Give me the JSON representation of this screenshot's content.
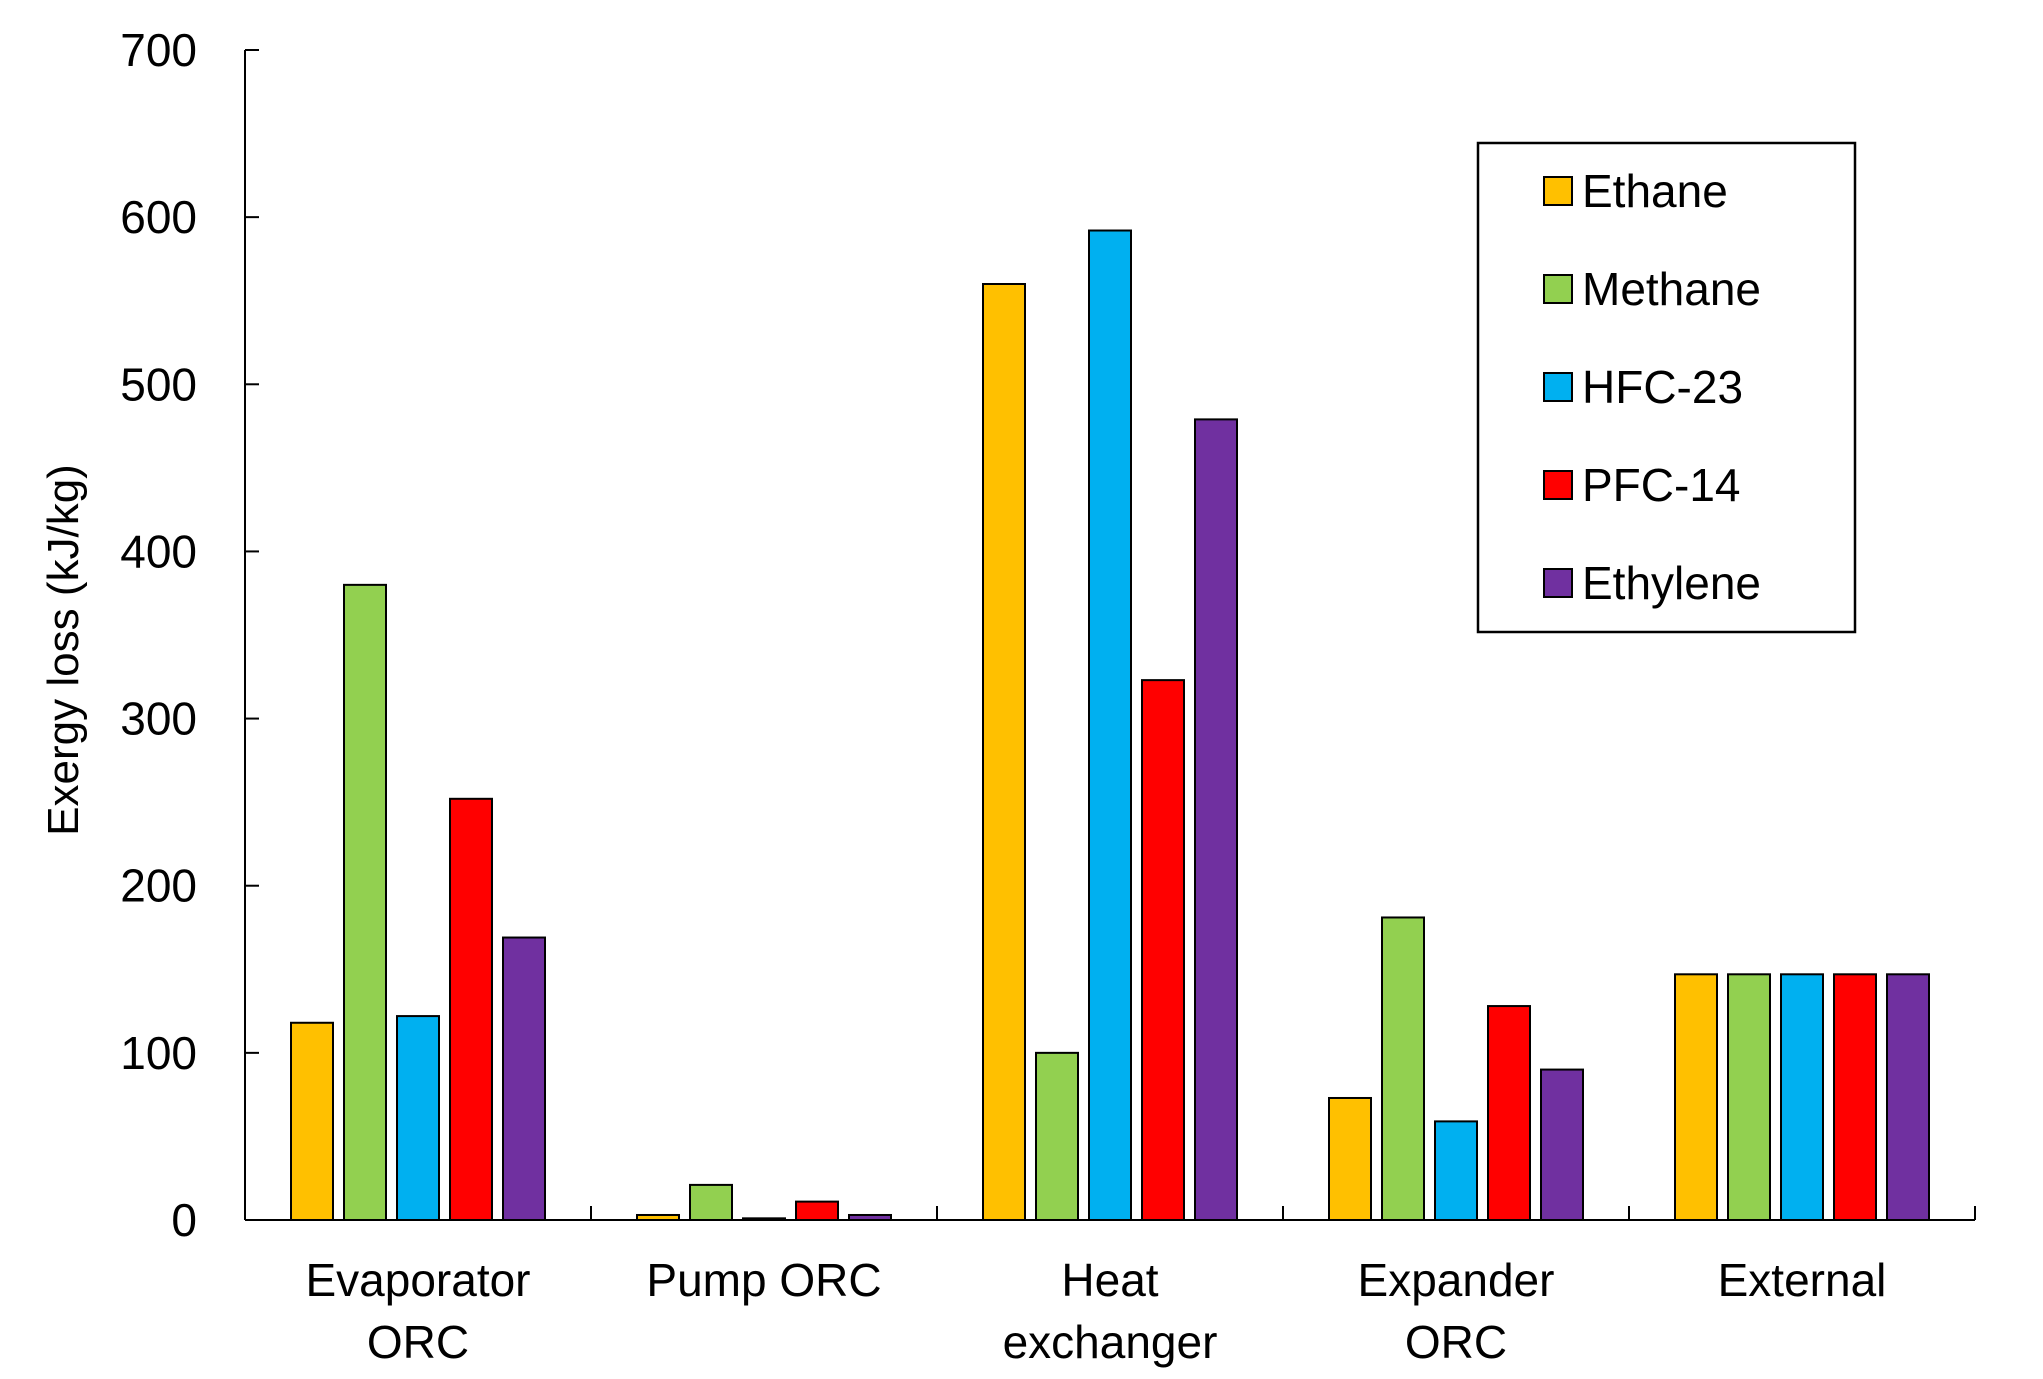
{
  "chart_data": {
    "type": "bar",
    "title": "",
    "xlabel": "",
    "ylabel": "Exergy loss (kJ/kg)",
    "ylim": [
      0,
      700
    ],
    "yticks": [
      0,
      100,
      200,
      300,
      400,
      500,
      600,
      700
    ],
    "legend_position": "top-right",
    "categories": [
      [
        "Evaporator",
        "ORC"
      ],
      [
        "Pump ORC"
      ],
      [
        "Heat",
        "exchanger"
      ],
      [
        "Expander",
        "ORC"
      ],
      [
        "External"
      ]
    ],
    "series": [
      {
        "name": "Ethane",
        "color": "#FFC000",
        "values": [
          118,
          3,
          560,
          73,
          147
        ]
      },
      {
        "name": "Methane",
        "color": "#92D050",
        "values": [
          380,
          21,
          100,
          181,
          147
        ]
      },
      {
        "name": "HFC-23",
        "color": "#00B0F0",
        "values": [
          122,
          1,
          592,
          59,
          147
        ]
      },
      {
        "name": "PFC-14",
        "color": "#FF0000",
        "values": [
          252,
          11,
          323,
          128,
          147
        ]
      },
      {
        "name": "Ethylene",
        "color": "#7030A0",
        "values": [
          169,
          3,
          479,
          90,
          147
        ]
      }
    ]
  }
}
